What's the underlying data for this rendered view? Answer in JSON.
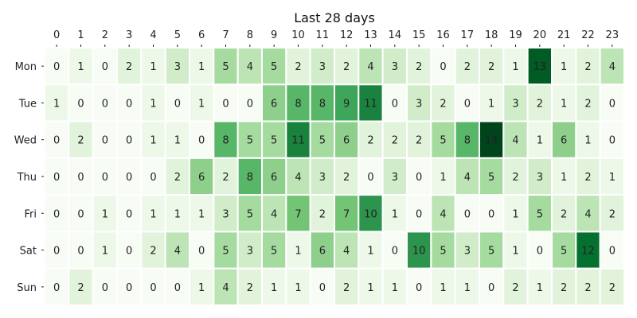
{
  "chart_data": {
    "type": "heatmap",
    "title": "Last 28 days",
    "x_categories": [
      "0",
      "1",
      "2",
      "3",
      "4",
      "5",
      "6",
      "7",
      "8",
      "9",
      "10",
      "11",
      "12",
      "13",
      "14",
      "15",
      "16",
      "17",
      "18",
      "19",
      "20",
      "21",
      "22",
      "23"
    ],
    "y_categories": [
      "Mon",
      "Tue",
      "Wed",
      "Thu",
      "Fri",
      "Sat",
      "Sun"
    ],
    "x_axis_position": "top",
    "colormap": "Greens",
    "value_range": [
      0,
      14
    ],
    "annotate_cells": true,
    "values": [
      [
        0,
        1,
        0,
        2,
        1,
        3,
        1,
        5,
        4,
        5,
        2,
        3,
        2,
        4,
        3,
        2,
        0,
        2,
        2,
        1,
        13,
        1,
        2,
        4
      ],
      [
        1,
        0,
        0,
        0,
        1,
        0,
        1,
        0,
        0,
        6,
        8,
        8,
        9,
        11,
        0,
        3,
        2,
        0,
        1,
        3,
        2,
        1,
        2,
        0
      ],
      [
        0,
        2,
        0,
        0,
        1,
        1,
        0,
        8,
        5,
        5,
        11,
        5,
        6,
        2,
        2,
        2,
        5,
        8,
        14,
        4,
        1,
        6,
        1,
        0
      ],
      [
        0,
        0,
        0,
        0,
        0,
        2,
        6,
        2,
        8,
        6,
        4,
        3,
        2,
        0,
        3,
        0,
        1,
        4,
        5,
        2,
        3,
        1,
        2,
        1
      ],
      [
        0,
        0,
        1,
        0,
        1,
        1,
        1,
        3,
        5,
        4,
        7,
        2,
        7,
        10,
        1,
        0,
        4,
        0,
        0,
        1,
        5,
        2,
        4,
        2
      ],
      [
        0,
        0,
        1,
        0,
        2,
        4,
        0,
        5,
        3,
        5,
        1,
        6,
        4,
        1,
        0,
        10,
        5,
        3,
        5,
        1,
        0,
        5,
        12,
        0
      ],
      [
        0,
        2,
        0,
        0,
        0,
        0,
        1,
        4,
        2,
        1,
        1,
        0,
        2,
        1,
        1,
        0,
        1,
        1,
        0,
        2,
        1,
        2,
        2,
        2
      ]
    ]
  }
}
